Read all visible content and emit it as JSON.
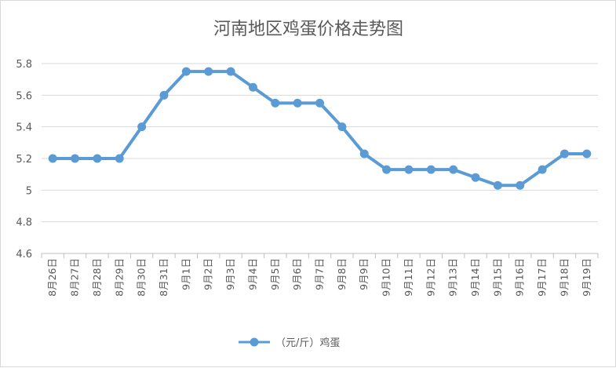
{
  "chart_data": {
    "type": "line",
    "title": "河南地区鸡蛋价格走势图",
    "categories": [
      "8月26日",
      "8月27日",
      "8月28日",
      "8月29日",
      "8月30日",
      "8月31日",
      "9月1日",
      "9月2日",
      "9月3日",
      "9月4日",
      "9月5日",
      "9月6日",
      "9月7日",
      "9月8日",
      "9月9日",
      "9月10日",
      "9月11日",
      "9月12日",
      "9月13日",
      "9月14日",
      "9月15日",
      "9月16日",
      "9月17日",
      "9月18日",
      "9月19日"
    ],
    "series": [
      {
        "name": "（元/斤）鸡蛋",
        "values": [
          5.2,
          5.2,
          5.2,
          5.2,
          5.4,
          5.6,
          5.75,
          5.75,
          5.75,
          5.65,
          5.55,
          5.55,
          5.55,
          5.4,
          5.23,
          5.13,
          5.13,
          5.13,
          5.13,
          5.08,
          5.03,
          5.03,
          5.13,
          5.23,
          5.23
        ]
      }
    ],
    "yticks": [
      "4.6",
      "4.8",
      "5",
      "5.2",
      "5.4",
      "5.6",
      "5.8"
    ],
    "ylim": [
      4.6,
      5.8
    ],
    "xlabel": "",
    "ylabel": "",
    "grid": true,
    "legend": "bottom",
    "line_color": "#5b9bd5"
  }
}
